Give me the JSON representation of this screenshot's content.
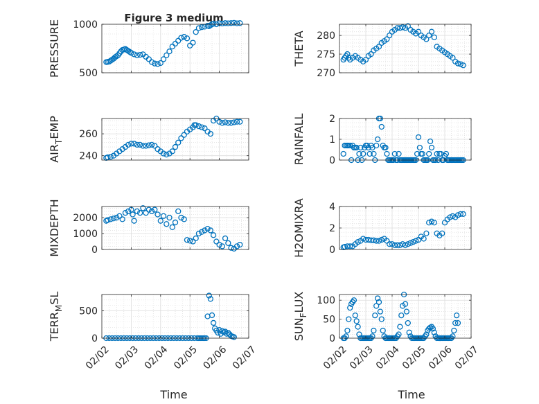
{
  "figure": {
    "title": "Figure 3 medium",
    "xlabel": "Time",
    "x_tick_labels": [
      "02/02",
      "02/03",
      "02/04",
      "02/05",
      "02/06",
      "02/07"
    ],
    "marker_color": "#0072BD"
  },
  "chart_data": [
    {
      "type": "scatter",
      "ylabel": "PRESSURE",
      "x_unit": "days since 02/02",
      "ylim": [
        500,
        1000
      ],
      "yticks": [
        500,
        1000
      ],
      "grid": true,
      "x": [
        0.15,
        0.2,
        0.25,
        0.3,
        0.35,
        0.4,
        0.45,
        0.5,
        0.55,
        0.6,
        0.65,
        0.7,
        0.75,
        0.8,
        0.85,
        0.9,
        0.95,
        1.0,
        1.1,
        1.2,
        1.3,
        1.4,
        1.5,
        1.6,
        1.7,
        1.8,
        1.9,
        2.0,
        2.1,
        2.2,
        2.3,
        2.4,
        2.5,
        2.6,
        2.7,
        2.8,
        2.9,
        3.0,
        3.1,
        3.2,
        3.3,
        3.4,
        3.5,
        3.6,
        3.65,
        3.7,
        3.75,
        3.8,
        3.9,
        4.0,
        4.1,
        4.2,
        4.3,
        4.4,
        4.5,
        4.6,
        4.7
      ],
      "values": [
        610,
        612,
        615,
        625,
        635,
        645,
        660,
        670,
        680,
        700,
        720,
        735,
        740,
        745,
        735,
        725,
        715,
        705,
        690,
        680,
        685,
        690,
        665,
        640,
        610,
        595,
        590,
        600,
        640,
        680,
        720,
        770,
        800,
        830,
        860,
        870,
        855,
        780,
        810,
        920,
        960,
        970,
        975,
        985,
        980,
        990,
        1000,
        1005,
        1000,
        1010,
        1008,
        1012,
        1010,
        1012,
        1015,
        1010,
        1012
      ]
    },
    {
      "type": "scatter",
      "ylabel": "THETA",
      "x_unit": "days since 02/02",
      "ylim": [
        270,
        283
      ],
      "yticks": [
        270,
        275,
        280
      ],
      "grid": true,
      "x": [
        0.15,
        0.2,
        0.25,
        0.3,
        0.35,
        0.4,
        0.5,
        0.6,
        0.7,
        0.8,
        0.9,
        1.0,
        1.1,
        1.2,
        1.3,
        1.4,
        1.5,
        1.6,
        1.7,
        1.8,
        1.9,
        2.0,
        2.1,
        2.2,
        2.3,
        2.4,
        2.5,
        2.6,
        2.7,
        2.8,
        2.9,
        3.0,
        3.1,
        3.2,
        3.3,
        3.4,
        3.5,
        3.6,
        3.7,
        3.8,
        3.9,
        4.0,
        4.1,
        4.2,
        4.3,
        4.4,
        4.5,
        4.6,
        4.7
      ],
      "values": [
        273.5,
        274,
        274.5,
        275,
        274,
        273.5,
        274,
        274.5,
        274,
        273.5,
        273,
        273.5,
        274.5,
        275,
        276,
        276.5,
        277,
        278,
        278.5,
        279,
        280,
        281,
        281.5,
        282,
        282,
        282.2,
        282,
        282.5,
        281.5,
        281,
        280.5,
        281,
        280,
        279.5,
        279,
        280,
        281,
        279.5,
        277,
        276.5,
        276,
        275.5,
        275,
        274.5,
        274,
        273,
        272.5,
        272.3,
        272
      ]
    },
    {
      "type": "scatter",
      "ylabel": "AIR_TEMP",
      "x_unit": "days since 02/02",
      "ylim": [
        236,
        274
      ],
      "yticks": [
        240,
        260
      ],
      "grid": true,
      "x": [
        0.15,
        0.2,
        0.3,
        0.4,
        0.5,
        0.6,
        0.7,
        0.8,
        0.9,
        1.0,
        1.1,
        1.2,
        1.3,
        1.4,
        1.5,
        1.6,
        1.7,
        1.8,
        1.9,
        2.0,
        2.1,
        2.2,
        2.3,
        2.4,
        2.5,
        2.6,
        2.7,
        2.8,
        2.9,
        3.0,
        3.1,
        3.15,
        3.2,
        3.3,
        3.4,
        3.5,
        3.6,
        3.7,
        3.8,
        3.9,
        4.0,
        4.1,
        4.2,
        4.3,
        4.4,
        4.5,
        4.6,
        4.7
      ],
      "values": [
        238,
        238.5,
        239,
        240,
        242,
        244,
        246,
        248,
        250,
        251,
        251,
        250,
        250,
        249,
        249,
        249.5,
        250,
        249,
        246,
        244,
        242,
        241,
        242,
        244,
        248,
        252,
        256,
        259,
        262,
        264,
        266,
        268,
        268,
        267,
        266,
        265,
        262,
        260,
        272,
        274,
        271,
        270,
        270.5,
        270,
        270,
        270.5,
        271,
        271
      ]
    },
    {
      "type": "scatter",
      "ylabel": "RAINFALL",
      "x_unit": "days since 02/02",
      "ylim": [
        0,
        2
      ],
      "yticks": [
        0,
        1,
        2
      ],
      "grid": true,
      "x": [
        0.15,
        0.2,
        0.25,
        0.3,
        0.35,
        0.4,
        0.45,
        0.5,
        0.55,
        0.6,
        0.65,
        0.7,
        0.75,
        0.8,
        0.85,
        0.9,
        0.95,
        1.0,
        1.05,
        1.1,
        1.15,
        1.2,
        1.25,
        1.3,
        1.35,
        1.4,
        1.45,
        1.5,
        1.55,
        1.6,
        1.65,
        1.7,
        1.75,
        1.8,
        1.85,
        1.9,
        1.95,
        2.0,
        2.05,
        2.1,
        2.15,
        2.2,
        2.25,
        2.3,
        2.35,
        2.4,
        2.45,
        2.5,
        2.55,
        2.6,
        2.65,
        2.7,
        2.75,
        2.8,
        2.85,
        2.9,
        2.95,
        3.0,
        3.05,
        3.1,
        3.15,
        3.2,
        3.25,
        3.3,
        3.35,
        3.4,
        3.45,
        3.5,
        3.55,
        3.6,
        3.65,
        3.7,
        3.75,
        3.8,
        3.85,
        3.9,
        3.95,
        4.0,
        4.05,
        4.1,
        4.15,
        4.2,
        4.25,
        4.3,
        4.35,
        4.4,
        4.45,
        4.5,
        4.55,
        4.6,
        4.65,
        4.7
      ],
      "values": [
        0.3,
        0.7,
        0.7,
        0.7,
        0.7,
        0.7,
        0,
        0.7,
        0.6,
        0.6,
        0.6,
        0,
        0.3,
        0.6,
        0,
        0.3,
        0.6,
        0.7,
        0.7,
        0.6,
        0.3,
        0.7,
        0.6,
        0.3,
        0,
        0.7,
        1,
        2,
        2,
        1.6,
        0.7,
        0.6,
        0.6,
        0.3,
        0,
        0,
        0,
        0,
        0,
        0.3,
        0,
        0,
        0.3,
        0,
        0,
        0,
        0,
        0,
        0,
        0,
        0,
        0,
        0,
        0,
        0,
        0,
        0.3,
        1.1,
        0.6,
        0.3,
        0.3,
        0,
        0,
        0,
        0,
        0.3,
        0.9,
        0.6,
        0,
        0,
        0,
        0.3,
        0,
        0.3,
        0.3,
        0,
        0,
        0.2,
        0.3,
        0,
        0,
        0,
        0,
        0,
        0,
        0,
        0,
        0,
        0,
        0,
        0,
        0
      ]
    },
    {
      "type": "scatter",
      "ylabel": "MIXDEPTH",
      "x_unit": "days since 02/02",
      "ylim": [
        0,
        2700
      ],
      "yticks": [
        0,
        1000,
        2000
      ],
      "grid": true,
      "x": [
        0.15,
        0.2,
        0.3,
        0.4,
        0.5,
        0.6,
        0.7,
        0.8,
        0.9,
        1.0,
        1.05,
        1.1,
        1.2,
        1.3,
        1.4,
        1.5,
        1.6,
        1.7,
        1.8,
        1.9,
        2.0,
        2.1,
        2.2,
        2.3,
        2.4,
        2.5,
        2.6,
        2.7,
        2.8,
        2.9,
        3.0,
        3.1,
        3.2,
        3.3,
        3.4,
        3.5,
        3.6,
        3.7,
        3.8,
        3.9,
        4.0,
        4.1,
        4.2,
        4.3,
        4.4,
        4.5,
        4.6,
        4.7
      ],
      "values": [
        1800,
        1850,
        1900,
        1950,
        2000,
        2100,
        1900,
        2300,
        2400,
        2500,
        2200,
        1800,
        2400,
        2300,
        2600,
        2300,
        2500,
        2400,
        2500,
        2200,
        1800,
        2100,
        1600,
        2000,
        1400,
        1700,
        2400,
        2000,
        1900,
        600,
        550,
        500,
        700,
        1000,
        1100,
        1200,
        1300,
        1200,
        900,
        500,
        300,
        200,
        700,
        400,
        100,
        50,
        200,
        300
      ]
    },
    {
      "type": "scatter",
      "ylabel": "H2OMIXRA",
      "x_unit": "days since 02/02",
      "ylim": [
        0,
        4
      ],
      "yticks": [
        0,
        2,
        4
      ],
      "grid": true,
      "x": [
        0.15,
        0.2,
        0.3,
        0.4,
        0.5,
        0.6,
        0.7,
        0.8,
        0.9,
        1.0,
        1.1,
        1.2,
        1.3,
        1.4,
        1.5,
        1.6,
        1.7,
        1.8,
        1.9,
        2.0,
        2.1,
        2.2,
        2.3,
        2.4,
        2.5,
        2.6,
        2.7,
        2.8,
        2.9,
        3.0,
        3.1,
        3.2,
        3.3,
        3.4,
        3.5,
        3.6,
        3.7,
        3.8,
        3.9,
        4.0,
        4.1,
        4.2,
        4.3,
        4.4,
        4.5,
        4.6,
        4.7
      ],
      "values": [
        0.2,
        0.25,
        0.3,
        0.3,
        0.3,
        0.5,
        0.7,
        0.8,
        1.0,
        0.9,
        0.9,
        0.85,
        0.85,
        0.8,
        0.8,
        0.9,
        1.0,
        0.8,
        0.5,
        0.5,
        0.4,
        0.4,
        0.4,
        0.5,
        0.4,
        0.5,
        0.6,
        0.7,
        0.8,
        0.9,
        1.2,
        1.0,
        1.5,
        2.5,
        2.6,
        2.5,
        1.5,
        1.3,
        1.5,
        2.5,
        2.8,
        3.0,
        3.1,
        3.0,
        3.2,
        3.3,
        3.3
      ]
    },
    {
      "type": "scatter",
      "ylabel": "TERR_MSL",
      "x_unit": "days since 02/02",
      "ylim": [
        0,
        800
      ],
      "yticks": [
        0,
        500
      ],
      "grid": true,
      "x": [
        0.15,
        0.25,
        0.35,
        0.45,
        0.55,
        0.65,
        0.75,
        0.85,
        0.95,
        1.05,
        1.15,
        1.25,
        1.35,
        1.45,
        1.55,
        1.65,
        1.75,
        1.85,
        1.95,
        2.05,
        2.15,
        2.25,
        2.35,
        2.45,
        2.55,
        2.65,
        2.75,
        2.85,
        2.95,
        3.05,
        3.15,
        3.25,
        3.3,
        3.35,
        3.4,
        3.45,
        3.5,
        3.55,
        3.6,
        3.65,
        3.7,
        3.75,
        3.8,
        3.85,
        3.9,
        3.95,
        4.0,
        4.05,
        4.1,
        4.15,
        4.2,
        4.25,
        4.3,
        4.35,
        4.4,
        4.45,
        4.5
      ],
      "values": [
        0,
        0,
        0,
        0,
        0,
        0,
        0,
        0,
        0,
        0,
        0,
        0,
        0,
        0,
        0,
        0,
        0,
        0,
        0,
        0,
        0,
        0,
        0,
        0,
        0,
        0,
        0,
        0,
        0,
        0,
        0,
        0,
        0,
        0,
        0,
        0,
        0,
        0,
        400,
        780,
        720,
        420,
        280,
        180,
        140,
        100,
        150,
        80,
        130,
        110,
        120,
        80,
        100,
        70,
        40,
        30,
        20
      ]
    },
    {
      "type": "scatter",
      "ylabel": "SUN_FLUX",
      "x_unit": "days since 02/02",
      "ylim": [
        0,
        115
      ],
      "yticks": [
        0,
        50,
        100
      ],
      "grid": true,
      "x": [
        0.15,
        0.2,
        0.25,
        0.3,
        0.35,
        0.4,
        0.45,
        0.5,
        0.55,
        0.6,
        0.65,
        0.7,
        0.75,
        0.8,
        0.85,
        0.9,
        0.95,
        1.0,
        1.05,
        1.1,
        1.15,
        1.2,
        1.25,
        1.3,
        1.35,
        1.4,
        1.45,
        1.5,
        1.55,
        1.6,
        1.65,
        1.7,
        1.75,
        1.8,
        1.85,
        1.9,
        1.95,
        2.0,
        2.05,
        2.1,
        2.15,
        2.2,
        2.25,
        2.3,
        2.35,
        2.4,
        2.45,
        2.5,
        2.55,
        2.6,
        2.65,
        2.7,
        2.75,
        2.8,
        2.85,
        2.9,
        2.95,
        3.0,
        3.05,
        3.1,
        3.15,
        3.2,
        3.25,
        3.3,
        3.35,
        3.4,
        3.45,
        3.5,
        3.55,
        3.6,
        3.65,
        3.7,
        3.75,
        3.8,
        3.85,
        3.9,
        3.95,
        4.0,
        4.05,
        4.1,
        4.15,
        4.2,
        4.25,
        4.3,
        4.35,
        4.4,
        4.45,
        4.5
      ],
      "values": [
        0,
        0,
        5,
        20,
        50,
        80,
        90,
        95,
        100,
        60,
        45,
        30,
        10,
        0,
        0,
        0,
        0,
        0,
        0,
        0,
        0,
        0,
        5,
        20,
        60,
        85,
        105,
        95,
        70,
        50,
        20,
        5,
        0,
        0,
        0,
        0,
        0,
        0,
        0,
        0,
        0,
        5,
        10,
        30,
        60,
        85,
        115,
        90,
        70,
        40,
        15,
        5,
        0,
        0,
        0,
        0,
        0,
        0,
        0,
        0,
        0,
        0,
        5,
        10,
        20,
        25,
        28,
        30,
        25,
        15,
        5,
        0,
        0,
        0,
        0,
        0,
        0,
        0,
        0,
        0,
        0,
        0,
        0,
        5,
        20,
        40,
        60,
        40
      ]
    }
  ]
}
